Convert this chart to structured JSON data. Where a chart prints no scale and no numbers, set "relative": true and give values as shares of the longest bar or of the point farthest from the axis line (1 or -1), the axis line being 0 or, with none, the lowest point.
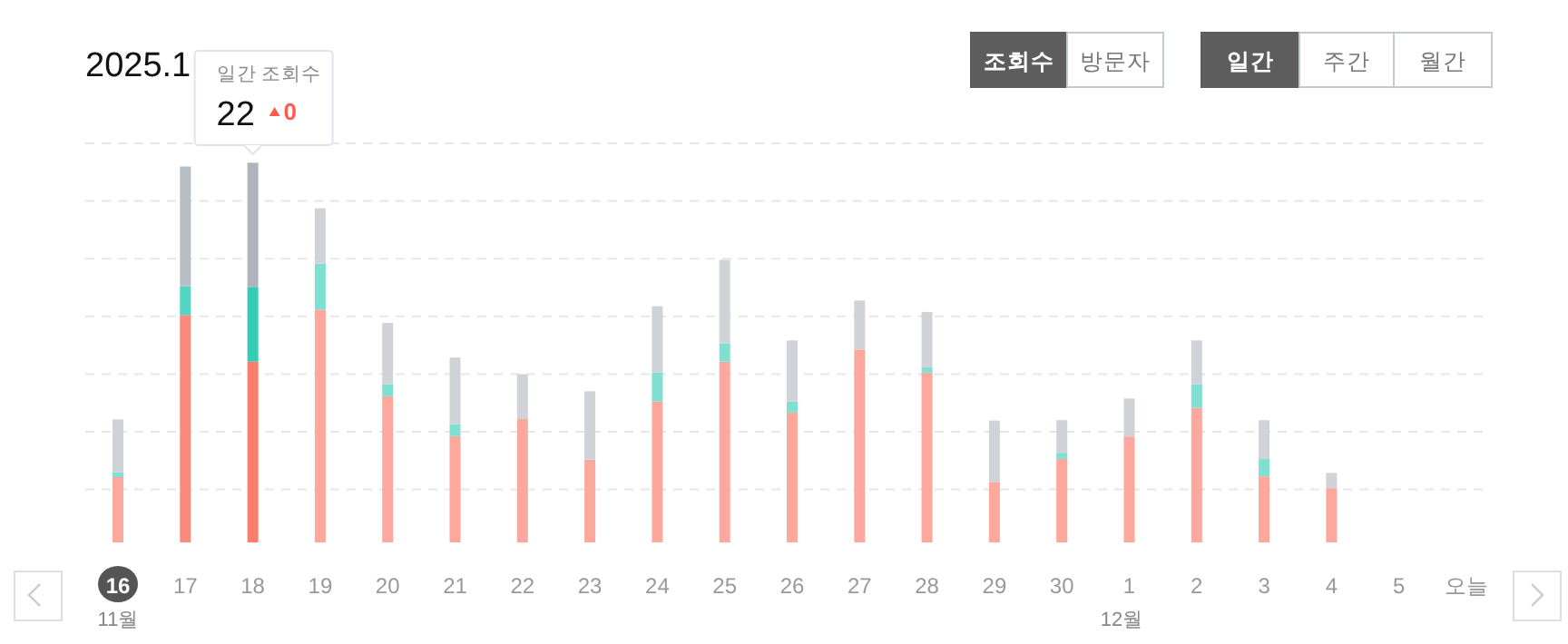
{
  "chart_data": {
    "type": "bar",
    "stacked": true,
    "relative": true,
    "grid": "y",
    "title": "2025.1",
    "categories": [
      "16",
      "17",
      "18",
      "19",
      "20",
      "21",
      "22",
      "23",
      "24",
      "25",
      "26",
      "27",
      "28",
      "29",
      "30",
      "1",
      "2",
      "3",
      "4",
      "5",
      "오늘"
    ],
    "series": [
      {
        "colors": [
          "#fda89d",
          "#fb8a7b",
          "#ff7b6b",
          "#fda89d",
          "#fda89d",
          "#fda89d",
          "#fda89d",
          "#fda89d",
          "#fda89d",
          "#fda89d",
          "#fda89d",
          "#fda89d",
          "#fda89d",
          "#fda89d",
          "#fda89d",
          "#fda89d",
          "#fda89d",
          "#fda89d",
          "#fda89d",
          null,
          null
        ],
        "values": [
          0.172,
          0.599,
          0.476,
          0.613,
          0.385,
          0.28,
          0.325,
          0.218,
          0.371,
          0.476,
          0.342,
          0.508,
          0.447,
          0.159,
          0.22,
          0.279,
          0.355,
          0.174,
          0.143,
          null,
          null
        ]
      },
      {
        "colors": [
          "#7fe0d1",
          "#4fd5c1",
          "#35cbb5",
          "#7fe0d1",
          "#7fe0d1",
          "#7fe0d1",
          null,
          null,
          "#7fe0d1",
          "#7fe0d1",
          "#7fe0d1",
          null,
          "#7fe0d1",
          null,
          "#7fe0d1",
          null,
          "#7fe0d1",
          "#7fe0d1",
          null,
          null,
          null
        ],
        "values": [
          0.013,
          0.076,
          0.197,
          0.121,
          0.032,
          0.032,
          0,
          0,
          0.076,
          0.048,
          0.029,
          0,
          0.014,
          0,
          0.016,
          0,
          0.062,
          0.046,
          0,
          null,
          null
        ]
      },
      {
        "colors": [
          "#cfd3d8",
          "#b8bec6",
          "#aeb4bc",
          "#cfd3d8",
          "#cfd3d8",
          "#cfd3d8",
          "#cfd3d8",
          "#cfd3d8",
          "#cfd3d8",
          "#cfd3d8",
          "#cfd3d8",
          "#cfd3d8",
          "#cfd3d8",
          "#cfd3d8",
          "#cfd3d8",
          "#cfd3d8",
          "#cfd3d8",
          "#cfd3d8",
          "#cfd3d8",
          null,
          null
        ],
        "values": [
          0.139,
          0.315,
          0.327,
          0.146,
          0.161,
          0.175,
          0.118,
          0.18,
          0.175,
          0.22,
          0.161,
          0.129,
          0.146,
          0.162,
          0.086,
          0.1,
          0.115,
          0.102,
          0.04,
          null,
          null
        ]
      }
    ],
    "annotations": [
      "조회수",
      "방문자",
      "일간",
      "주간",
      "월간",
      "11월",
      "12월",
      "일간 조회수",
      "22",
      "0"
    ]
  }
}
